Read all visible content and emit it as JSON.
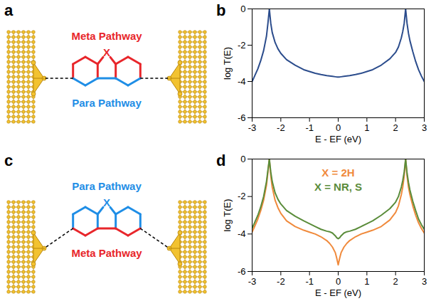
{
  "diagrams": [
    {
      "panel": "a",
      "atom": {
        "text": "X",
        "color": "#e8262b"
      },
      "top_label": {
        "text": "Meta Pathway",
        "color": "#e8262b"
      },
      "bottom_label": {
        "text": "Para Pathway",
        "color": "#1f8ee6"
      }
    },
    {
      "panel": "c",
      "atom": {
        "text": "X",
        "color": "#1f8ee6"
      },
      "top_label": {
        "text": "Para Pathway",
        "color": "#1f8ee6"
      },
      "bottom_label": {
        "text": "Meta Pathway",
        "color": "#e8262b"
      }
    }
  ],
  "chart_data": [
    {
      "panel": "b",
      "type": "line",
      "xlabel": "E - EF (eV)",
      "ylabel": "log T(E)",
      "xlim": [
        -3,
        3
      ],
      "ylim": [
        -6,
        0
      ],
      "xticks": [
        -3,
        -2,
        -1,
        0,
        1,
        2,
        3
      ],
      "yticks": [
        -6,
        -4,
        -2,
        0
      ],
      "color": "#2b4c8c",
      "x": [
        -3,
        -2.9,
        -2.8,
        -2.7,
        -2.6,
        -2.5,
        -2.45,
        -2.4,
        -2.35,
        -2.3,
        -2.2,
        -2.1,
        -2.0,
        -1.8,
        -1.5,
        -1.2,
        -1.0,
        -0.8,
        -0.6,
        -0.4,
        -0.3,
        -0.2,
        -0.1,
        -0.05,
        0,
        0.05,
        0.1,
        0.2,
        0.3,
        0.4,
        0.6,
        0.8,
        1.0,
        1.2,
        1.5,
        1.8,
        2.0,
        2.1,
        2.2,
        2.25,
        2.3,
        2.35,
        2.4,
        2.45,
        2.5,
        2.6,
        2.7,
        2.8,
        2.9,
        3.0
      ],
      "values": [
        -4.0,
        -3.65,
        -3.3,
        -2.85,
        -2.3,
        -1.5,
        -0.8,
        0,
        -0.8,
        -1.3,
        -1.85,
        -2.2,
        -2.45,
        -2.8,
        -3.1,
        -3.35,
        -3.45,
        -3.55,
        -3.62,
        -3.68,
        -3.7,
        -3.72,
        -3.74,
        -3.75,
        -3.75,
        -3.75,
        -3.74,
        -3.72,
        -3.7,
        -3.68,
        -3.62,
        -3.55,
        -3.45,
        -3.35,
        -3.1,
        -2.75,
        -2.4,
        -2.1,
        -1.6,
        -1.25,
        -0.8,
        0,
        -0.8,
        -1.35,
        -1.75,
        -2.35,
        -2.9,
        -3.35,
        -3.7,
        -4.0
      ]
    },
    {
      "panel": "d",
      "type": "line",
      "xlabel": "E - EF (eV)",
      "ylabel": "log T(E)",
      "xlim": [
        -3,
        3
      ],
      "ylim": [
        -6,
        0
      ],
      "xticks": [
        -3,
        -2,
        -1,
        0,
        1,
        2,
        3
      ],
      "yticks": [
        -6,
        -4,
        -2,
        0
      ],
      "legend": "top",
      "x": [
        -3,
        -2.9,
        -2.8,
        -2.7,
        -2.6,
        -2.5,
        -2.45,
        -2.4,
        -2.35,
        -2.3,
        -2.2,
        -2.1,
        -2.0,
        -1.8,
        -1.5,
        -1.2,
        -1.0,
        -0.8,
        -0.6,
        -0.4,
        -0.3,
        -0.2,
        -0.1,
        -0.05,
        0,
        0.05,
        0.1,
        0.2,
        0.3,
        0.4,
        0.6,
        0.8,
        1.0,
        1.2,
        1.5,
        1.8,
        2.0,
        2.1,
        2.2,
        2.25,
        2.3,
        2.35,
        2.4,
        2.45,
        2.5,
        2.6,
        2.7,
        2.8,
        2.9,
        3.0
      ],
      "series": [
        {
          "name": "X = 2H",
          "color": "#f08a3c",
          "values": [
            -3.9,
            -3.55,
            -3.2,
            -2.75,
            -2.2,
            -1.4,
            -0.7,
            0,
            -0.9,
            -1.5,
            -2.2,
            -2.6,
            -2.9,
            -3.3,
            -3.6,
            -3.8,
            -3.9,
            -4.0,
            -4.15,
            -4.35,
            -4.5,
            -4.7,
            -5.0,
            -5.3,
            -5.65,
            -5.3,
            -5.0,
            -4.7,
            -4.5,
            -4.35,
            -4.15,
            -4.0,
            -3.9,
            -3.8,
            -3.6,
            -3.25,
            -2.85,
            -2.5,
            -1.9,
            -1.5,
            -0.9,
            0,
            -0.9,
            -1.5,
            -1.9,
            -2.5,
            -3.0,
            -3.4,
            -3.7,
            -3.95
          ]
        },
        {
          "name": "X = NR, S",
          "color": "#5a8c3a",
          "values": [
            -3.7,
            -3.35,
            -3.0,
            -2.55,
            -2.0,
            -1.2,
            -0.6,
            0,
            -0.7,
            -1.2,
            -1.8,
            -2.15,
            -2.4,
            -2.75,
            -3.05,
            -3.3,
            -3.45,
            -3.6,
            -3.75,
            -3.85,
            -3.88,
            -3.95,
            -4.1,
            -4.2,
            -4.25,
            -4.2,
            -4.1,
            -3.95,
            -3.88,
            -3.85,
            -3.75,
            -3.6,
            -3.45,
            -3.3,
            -3.0,
            -2.65,
            -2.3,
            -2.0,
            -1.5,
            -1.15,
            -0.7,
            0,
            -0.75,
            -1.25,
            -1.65,
            -2.25,
            -2.75,
            -3.2,
            -3.5,
            -3.75
          ]
        }
      ]
    }
  ]
}
